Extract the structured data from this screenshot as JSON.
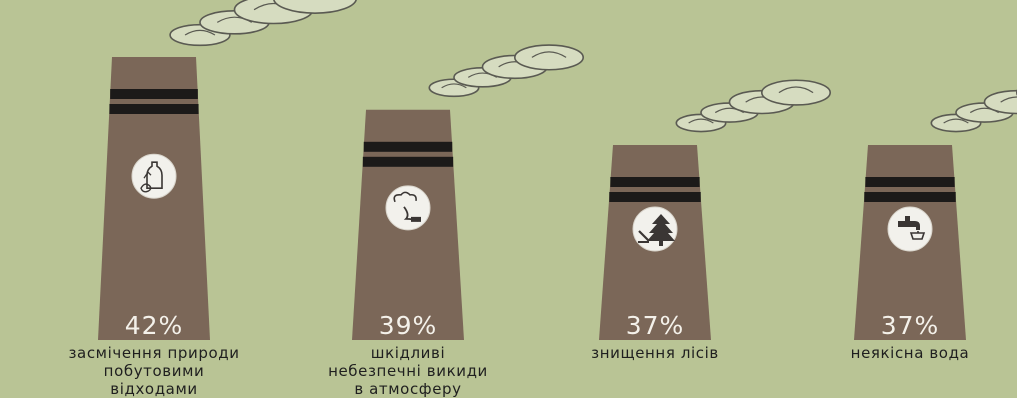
{
  "chart_data": {
    "type": "bar",
    "title": "",
    "xlabel": "",
    "ylabel": "",
    "ylim": [
      0,
      42
    ],
    "grid": false,
    "legend": "none",
    "categories": [
      [
        "засмічення природи",
        "побутовими",
        "відходами"
      ],
      [
        "шкідливі",
        "небезпечні викиди",
        "в атмосферу"
      ],
      [
        "знищення лісів"
      ],
      [
        "неякісна вода"
      ]
    ],
    "values": [
      42,
      39,
      37,
      37
    ],
    "value_labels": [
      "42%",
      "39%",
      "37%",
      "37%"
    ],
    "icons": [
      "bottle-litter-icon",
      "factory-smoke-icon",
      "tree-felling-icon",
      "water-tap-icon"
    ],
    "colors": {
      "background": "#b9c495",
      "chimney": "#7b6758",
      "band": "#1c1a19",
      "badge": "#f2f1ec",
      "value_text": "#f4f1ea",
      "smoke_stroke": "#5a5a52",
      "smoke_fill": "#d6dcc0",
      "label_text": "#1f1f1f"
    }
  }
}
